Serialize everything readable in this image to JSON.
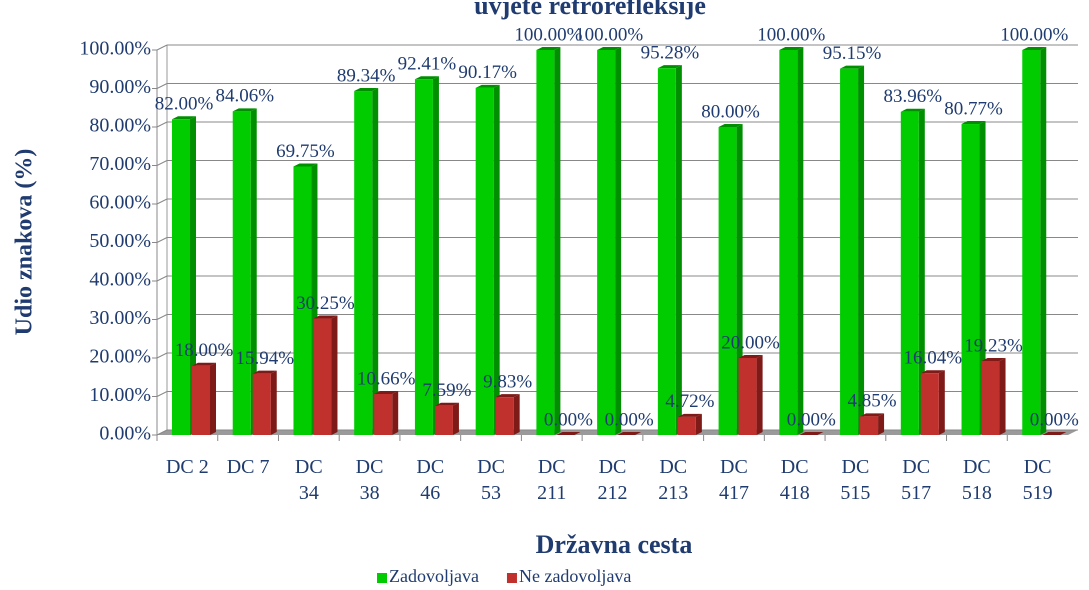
{
  "chart_data": {
    "type": "bar",
    "title": "uvjete retrorefleksije",
    "y_label": "Udio znakova (%)",
    "x_label": "Državna cesta",
    "categories": [
      "DC 2",
      "DC 7",
      "DC 34",
      "DC 38",
      "DC 46",
      "DC 53",
      "DC 211",
      "DC 212",
      "DC 213",
      "DC 417",
      "DC 418",
      "DC 515",
      "DC 517",
      "DC 518",
      "DC 519"
    ],
    "series": [
      {
        "name": "Zadovoljava",
        "color": "#00cc00",
        "values": [
          82,
          84.06,
          69.75,
          89.34,
          92.41,
          90.17,
          100,
          100,
          95.28,
          80,
          100,
          95.15,
          83.96,
          80.77,
          100
        ],
        "value_labels": [
          "82.00%",
          "84.06%",
          "69.75%",
          "89.34%",
          "92.41%",
          "90.17%",
          "100.00%",
          "100.00%",
          "95.28%",
          "80.00%",
          "100.00%",
          "95.15%",
          "83.96%",
          "80.77%",
          "100.00%"
        ]
      },
      {
        "name": "Ne zadovoljava",
        "color": "#c0302c",
        "values": [
          18,
          15.94,
          30.25,
          10.66,
          7.59,
          9.83,
          0,
          0,
          4.72,
          20,
          0,
          4.85,
          16.04,
          19.23,
          0
        ],
        "value_labels": [
          "18.00%",
          "15.94%",
          "30.25%",
          "10.66%",
          "7.59%",
          "9.83%",
          "0.00%",
          "0.00%",
          "4.72%",
          "20.00%",
          "0.00%",
          "4.85%",
          "16.04%",
          "19.23%",
          "0.00%"
        ]
      }
    ],
    "ylim": [
      0,
      100
    ],
    "yticks": [
      {
        "value": 0,
        "label": "0.00%"
      },
      {
        "value": 10,
        "label": "10.00%"
      },
      {
        "value": 20,
        "label": "20.00%"
      },
      {
        "value": 30,
        "label": "30.00%"
      },
      {
        "value": 40,
        "label": "40.00%"
      },
      {
        "value": 50,
        "label": "50.00%"
      },
      {
        "value": 60,
        "label": "60.00%"
      },
      {
        "value": 70,
        "label": "70.00%"
      },
      {
        "value": 80,
        "label": "80.00%"
      },
      {
        "value": 90,
        "label": "90.00%"
      },
      {
        "value": 100,
        "label": "100.00%"
      }
    ],
    "grid": true,
    "legend": "bottom"
  }
}
